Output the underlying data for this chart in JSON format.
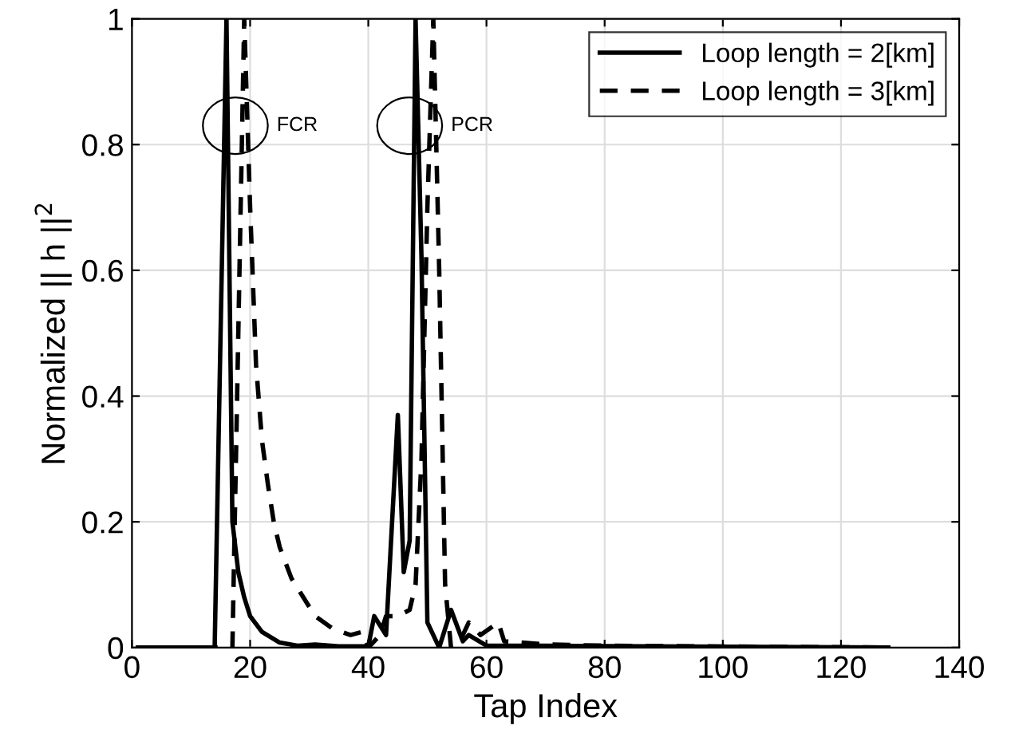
{
  "chart_data": {
    "type": "line",
    "xlabel": "Tap Index",
    "ylabel": "Normalized || h ||$^{2}$",
    "xlim": [
      0,
      140
    ],
    "xticks": [
      0,
      20,
      40,
      60,
      80,
      100,
      120,
      140
    ],
    "ylim": [
      0,
      1
    ],
    "yticks": [
      0,
      0.2,
      0.4,
      0.6,
      0.8,
      1
    ],
    "grid": true,
    "legend": "top right",
    "annotations": [
      {
        "text": "FCR",
        "x": 17.5,
        "y": 0.83
      },
      {
        "text": "PCR",
        "x": 47,
        "y": 0.83
      }
    ],
    "series": [
      {
        "name": "Loop length = 2[km]",
        "color": "#000000",
        "line_style": "solid",
        "x": [
          1,
          14,
          16,
          17,
          18,
          19,
          20,
          22,
          25,
          28,
          31,
          35,
          40,
          41,
          43,
          45,
          46,
          47,
          48,
          49,
          50,
          52,
          54,
          56,
          57,
          60,
          70,
          128
        ],
        "values": [
          0,
          0,
          1,
          0.2,
          0.12,
          0.08,
          0.05,
          0.025,
          0.008,
          0.003,
          0.005,
          0.002,
          0.002,
          0.05,
          0.02,
          0.37,
          0.12,
          0.17,
          1,
          0.62,
          0.04,
          0,
          0.06,
          0.01,
          0.02,
          0.003,
          0.003,
          0
        ]
      },
      {
        "name": "Loop length = 3[km]",
        "color": "#000000",
        "line_style": "dashed",
        "x": [
          1,
          17,
          19,
          20,
          21,
          22,
          23,
          24,
          25,
          27,
          29,
          31,
          34,
          37,
          39,
          40,
          42,
          43,
          45,
          47,
          48,
          49,
          50,
          51,
          52,
          53,
          54,
          56,
          57,
          59,
          62,
          63,
          70,
          80,
          128
        ],
        "values": [
          0,
          0,
          1,
          0.7,
          0.45,
          0.33,
          0.26,
          0.2,
          0.16,
          0.11,
          0.08,
          0.05,
          0.03,
          0.02,
          0.025,
          0,
          0.02,
          0.05,
          0.05,
          0.06,
          0.1,
          0.3,
          0.7,
          1,
          0.6,
          0.1,
          0,
          0.02,
          0.04,
          0.02,
          0.04,
          0.01,
          0.005,
          0.003,
          0
        ]
      }
    ]
  }
}
